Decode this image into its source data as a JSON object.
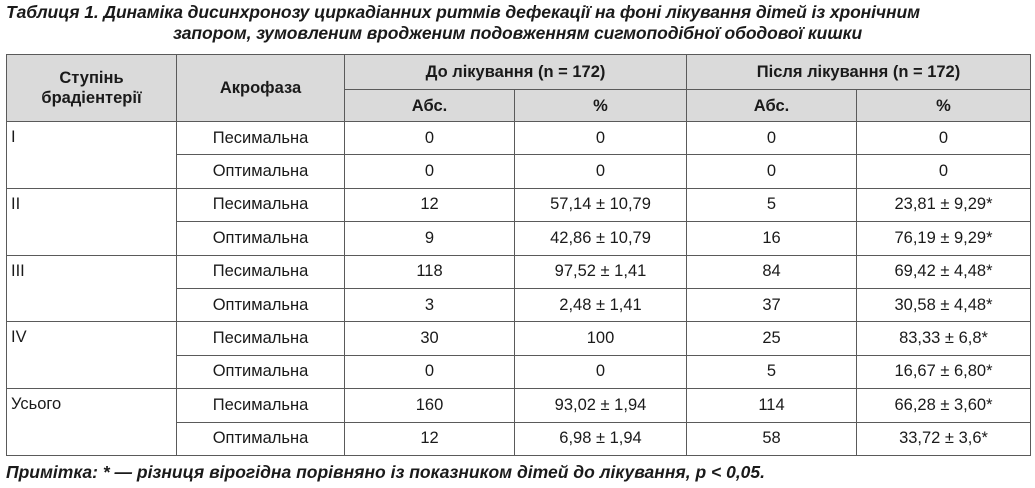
{
  "caption": {
    "line1": "Таблиця 1. Динаміка дисинхронозу циркадіанних ритмів дефекації на фоні лікування дітей із хронічним",
    "line2": "запором, зумовленим вродженим подовженням сигмоподібної ободової кишки"
  },
  "table": {
    "headers": {
      "degree": "Ступінь брадіентерії",
      "acrophase": "Акрофаза",
      "before": "До лікування (n = 172)",
      "after": "Після лікування (n = 172)",
      "abs": "Абс.",
      "pct": "%"
    },
    "groups": [
      {
        "degree": "I",
        "rows": [
          {
            "acrophase": "Песимальна",
            "before_abs": "0",
            "before_pct": "0",
            "after_abs": "0",
            "after_pct": "0"
          },
          {
            "acrophase": "Оптимальна",
            "before_abs": "0",
            "before_pct": "0",
            "after_abs": "0",
            "after_pct": "0"
          }
        ]
      },
      {
        "degree": "II",
        "rows": [
          {
            "acrophase": "Песимальна",
            "before_abs": "12",
            "before_pct": "57,14 ± 10,79",
            "after_abs": "5",
            "after_pct": "23,81 ± 9,29*"
          },
          {
            "acrophase": "Оптимальна",
            "before_abs": "9",
            "before_pct": "42,86 ± 10,79",
            "after_abs": "16",
            "after_pct": "76,19 ± 9,29*"
          }
        ]
      },
      {
        "degree": "III",
        "rows": [
          {
            "acrophase": "Песимальна",
            "before_abs": "118",
            "before_pct": "97,52 ± 1,41",
            "after_abs": "84",
            "after_pct": "69,42 ± 4,48*"
          },
          {
            "acrophase": "Оптимальна",
            "before_abs": "3",
            "before_pct": "2,48 ± 1,41",
            "after_abs": "37",
            "after_pct": "30,58 ± 4,48*"
          }
        ]
      },
      {
        "degree": "IV",
        "rows": [
          {
            "acrophase": "Песимальна",
            "before_abs": "30",
            "before_pct": "100",
            "after_abs": "25",
            "after_pct": "83,33 ± 6,8*"
          },
          {
            "acrophase": "Оптимальна",
            "before_abs": "0",
            "before_pct": "0",
            "after_abs": "5",
            "after_pct": "16,67 ± 6,80*"
          }
        ]
      },
      {
        "degree": "Усього",
        "rows": [
          {
            "acrophase": "Песимальна",
            "before_abs": "160",
            "before_pct": "93,02 ± 1,94",
            "after_abs": "114",
            "after_pct": "66,28 ± 3,60*"
          },
          {
            "acrophase": "Оптимальна",
            "before_abs": "12",
            "before_pct": "6,98 ± 1,94",
            "after_abs": "58",
            "after_pct": "33,72 ± 3,6*"
          }
        ]
      }
    ]
  },
  "note": "Примітка: * — різниця вірогідна порівняно із показником дітей до лікування, р < 0,05.",
  "colors": {
    "header_bg": "#dadada",
    "border": "#5a5a5a",
    "text": "#1a1a1a"
  }
}
